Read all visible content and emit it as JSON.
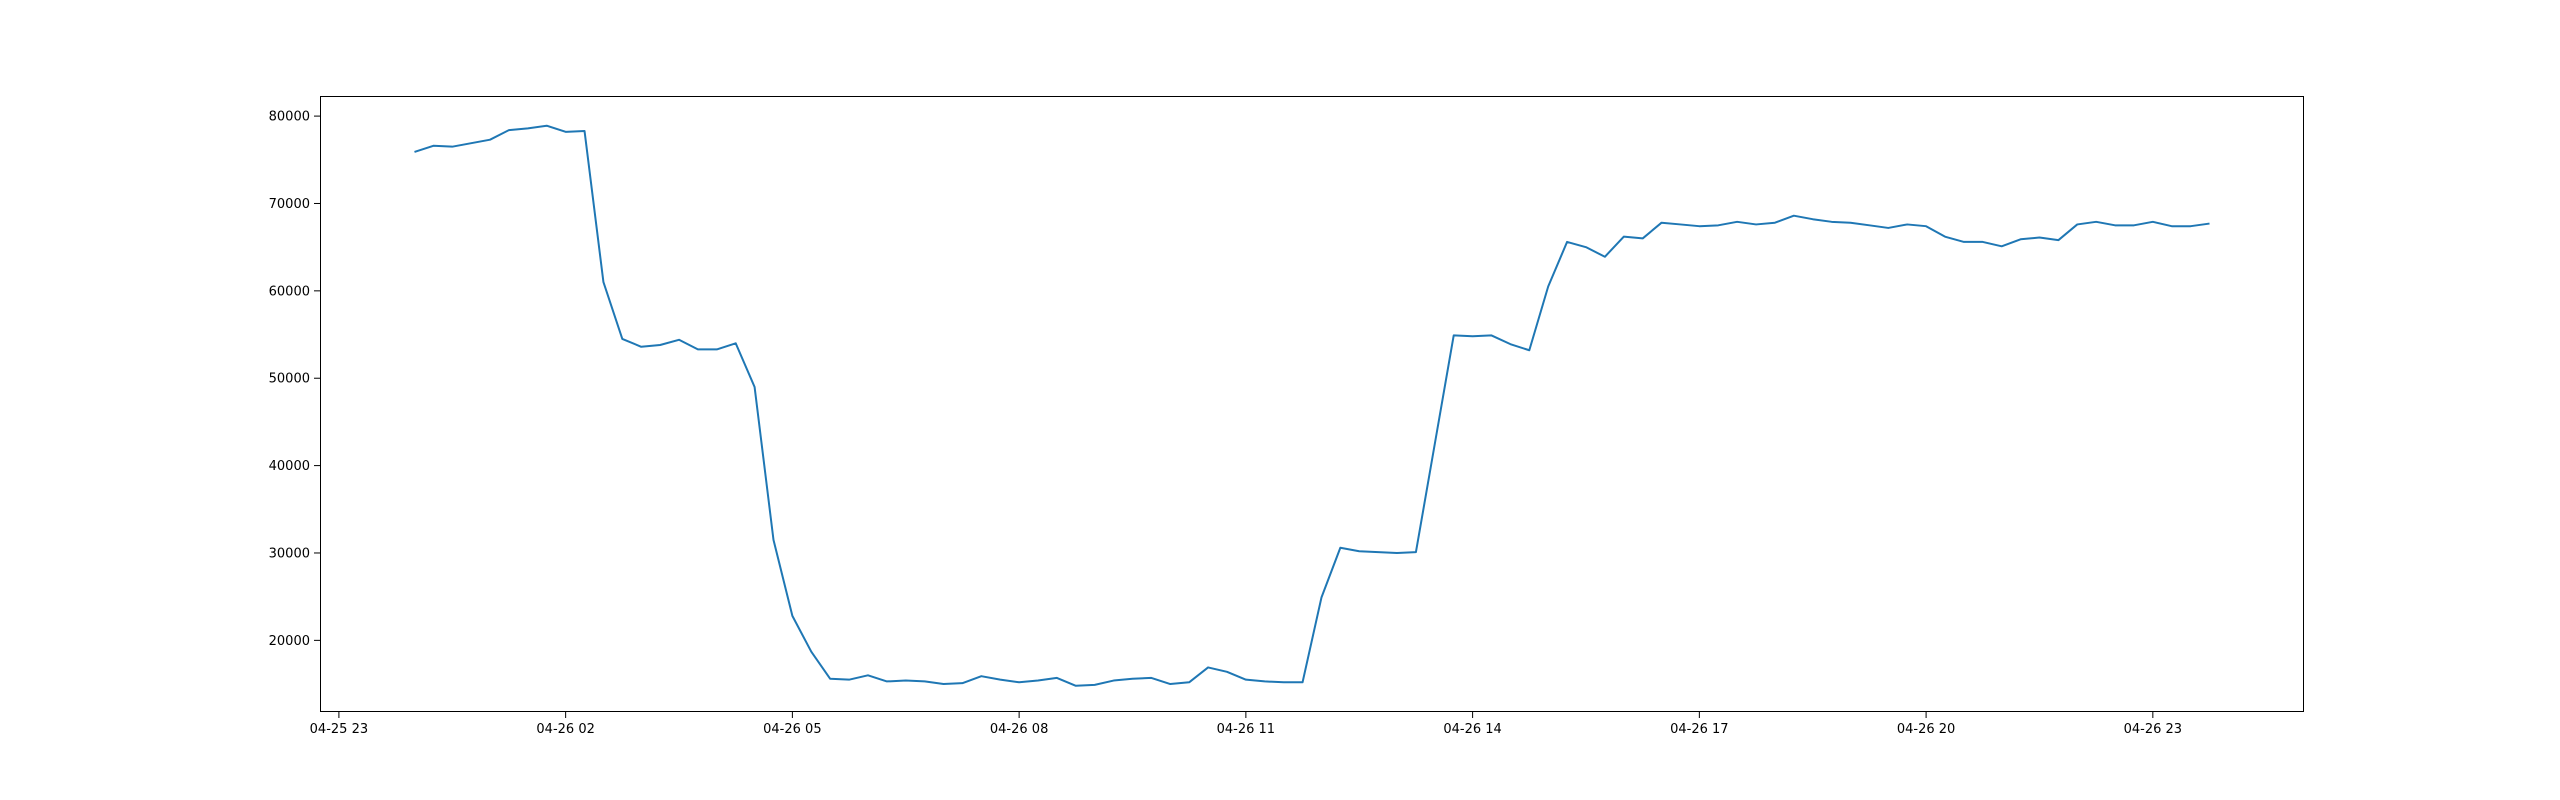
{
  "chart_data": {
    "type": "line",
    "title": "",
    "xlabel": "",
    "ylabel": "",
    "x_tick_labels": [
      "04-25 23",
      "04-26 02",
      "04-26 05",
      "04-26 08",
      "04-26 11",
      "04-26 14",
      "04-26 17",
      "04-26 20",
      "04-26 23"
    ],
    "x_ticks": [
      "2023-04-25T23:00",
      "2023-04-26T02:00",
      "2023-04-26T05:00",
      "2023-04-26T08:00",
      "2023-04-26T11:00",
      "2023-04-26T14:00",
      "2023-04-26T17:00",
      "2023-04-26T20:00",
      "2023-04-26T23:00"
    ],
    "y_ticks": [
      20000,
      30000,
      40000,
      50000,
      60000,
      70000,
      80000
    ],
    "y_tick_labels": [
      "20000",
      "30000",
      "40000",
      "50000",
      "60000",
      "70000",
      "80000"
    ],
    "xlim": [
      "2023-04-25T22:45",
      "2023-04-27T01:00"
    ],
    "ylim": [
      11800,
      82300
    ],
    "grid": false,
    "series": [
      {
        "color": "#1f77b4",
        "x": [
          "2023-04-26T00:00",
          "2023-04-26T00:15",
          "2023-04-26T00:30",
          "2023-04-26T00:45",
          "2023-04-26T01:00",
          "2023-04-26T01:15",
          "2023-04-26T01:30",
          "2023-04-26T01:45",
          "2023-04-26T02:00",
          "2023-04-26T02:15",
          "2023-04-26T02:30",
          "2023-04-26T02:45",
          "2023-04-26T03:00",
          "2023-04-26T03:15",
          "2023-04-26T03:30",
          "2023-04-26T03:45",
          "2023-04-26T04:00",
          "2023-04-26T04:15",
          "2023-04-26T04:30",
          "2023-04-26T04:45",
          "2023-04-26T05:00",
          "2023-04-26T05:15",
          "2023-04-26T05:30",
          "2023-04-26T05:45",
          "2023-04-26T06:00",
          "2023-04-26T06:15",
          "2023-04-26T06:30",
          "2023-04-26T06:45",
          "2023-04-26T07:00",
          "2023-04-26T07:15",
          "2023-04-26T07:30",
          "2023-04-26T07:45",
          "2023-04-26T08:00",
          "2023-04-26T08:15",
          "2023-04-26T08:30",
          "2023-04-26T08:45",
          "2023-04-26T09:00",
          "2023-04-26T09:15",
          "2023-04-26T09:30",
          "2023-04-26T09:45",
          "2023-04-26T10:00",
          "2023-04-26T10:15",
          "2023-04-26T10:30",
          "2023-04-26T10:45",
          "2023-04-26T11:00",
          "2023-04-26T11:15",
          "2023-04-26T11:30",
          "2023-04-26T11:45",
          "2023-04-26T12:00",
          "2023-04-26T12:15",
          "2023-04-26T12:30",
          "2023-04-26T12:45",
          "2023-04-26T13:00",
          "2023-04-26T13:15",
          "2023-04-26T13:30",
          "2023-04-26T13:45",
          "2023-04-26T14:00",
          "2023-04-26T14:15",
          "2023-04-26T14:30",
          "2023-04-26T14:45",
          "2023-04-26T15:00",
          "2023-04-26T15:15",
          "2023-04-26T15:30",
          "2023-04-26T15:45",
          "2023-04-26T16:00",
          "2023-04-26T16:15",
          "2023-04-26T16:30",
          "2023-04-26T16:45",
          "2023-04-26T17:00",
          "2023-04-26T17:15",
          "2023-04-26T17:30",
          "2023-04-26T17:45",
          "2023-04-26T18:00",
          "2023-04-26T18:15",
          "2023-04-26T18:30",
          "2023-04-26T18:45",
          "2023-04-26T19:00",
          "2023-04-26T19:15",
          "2023-04-26T19:30",
          "2023-04-26T19:45",
          "2023-04-26T20:00",
          "2023-04-26T20:15",
          "2023-04-26T20:30",
          "2023-04-26T20:45",
          "2023-04-26T21:00",
          "2023-04-26T21:15",
          "2023-04-26T21:30",
          "2023-04-26T21:45",
          "2023-04-26T22:00",
          "2023-04-26T22:15",
          "2023-04-26T22:30",
          "2023-04-26T22:45",
          "2023-04-26T23:00",
          "2023-04-26T23:15",
          "2023-04-26T23:30",
          "2023-04-26T23:45"
        ],
        "y": [
          75900,
          76600,
          76500,
          76900,
          77300,
          78400,
          78600,
          78900,
          78200,
          78300,
          61000,
          54500,
          53600,
          53800,
          54400,
          53300,
          53300,
          54000,
          49000,
          31500,
          22800,
          18700,
          15600,
          15500,
          16000,
          15300,
          15400,
          15300,
          15000,
          15100,
          15900,
          15500,
          15200,
          15400,
          15700,
          14800,
          14900,
          15400,
          15600,
          15700,
          15000,
          15200,
          16900,
          16400,
          15500,
          15300,
          15200,
          15200,
          24900,
          30600,
          30200,
          30100,
          30000,
          30100,
          42500,
          54900,
          54800,
          54900,
          53900,
          53200,
          60500,
          65600,
          65000,
          63900,
          66200,
          66000,
          67800,
          67600,
          67400,
          67500,
          67900,
          67600,
          67800,
          68600,
          68200,
          67900,
          67800,
          67500,
          67200,
          67600,
          67400,
          66200,
          65600,
          65600,
          65100,
          65900,
          66100,
          65800,
          67600,
          67900,
          67500,
          67500,
          67900,
          67400,
          67400,
          67700
        ]
      }
    ]
  }
}
